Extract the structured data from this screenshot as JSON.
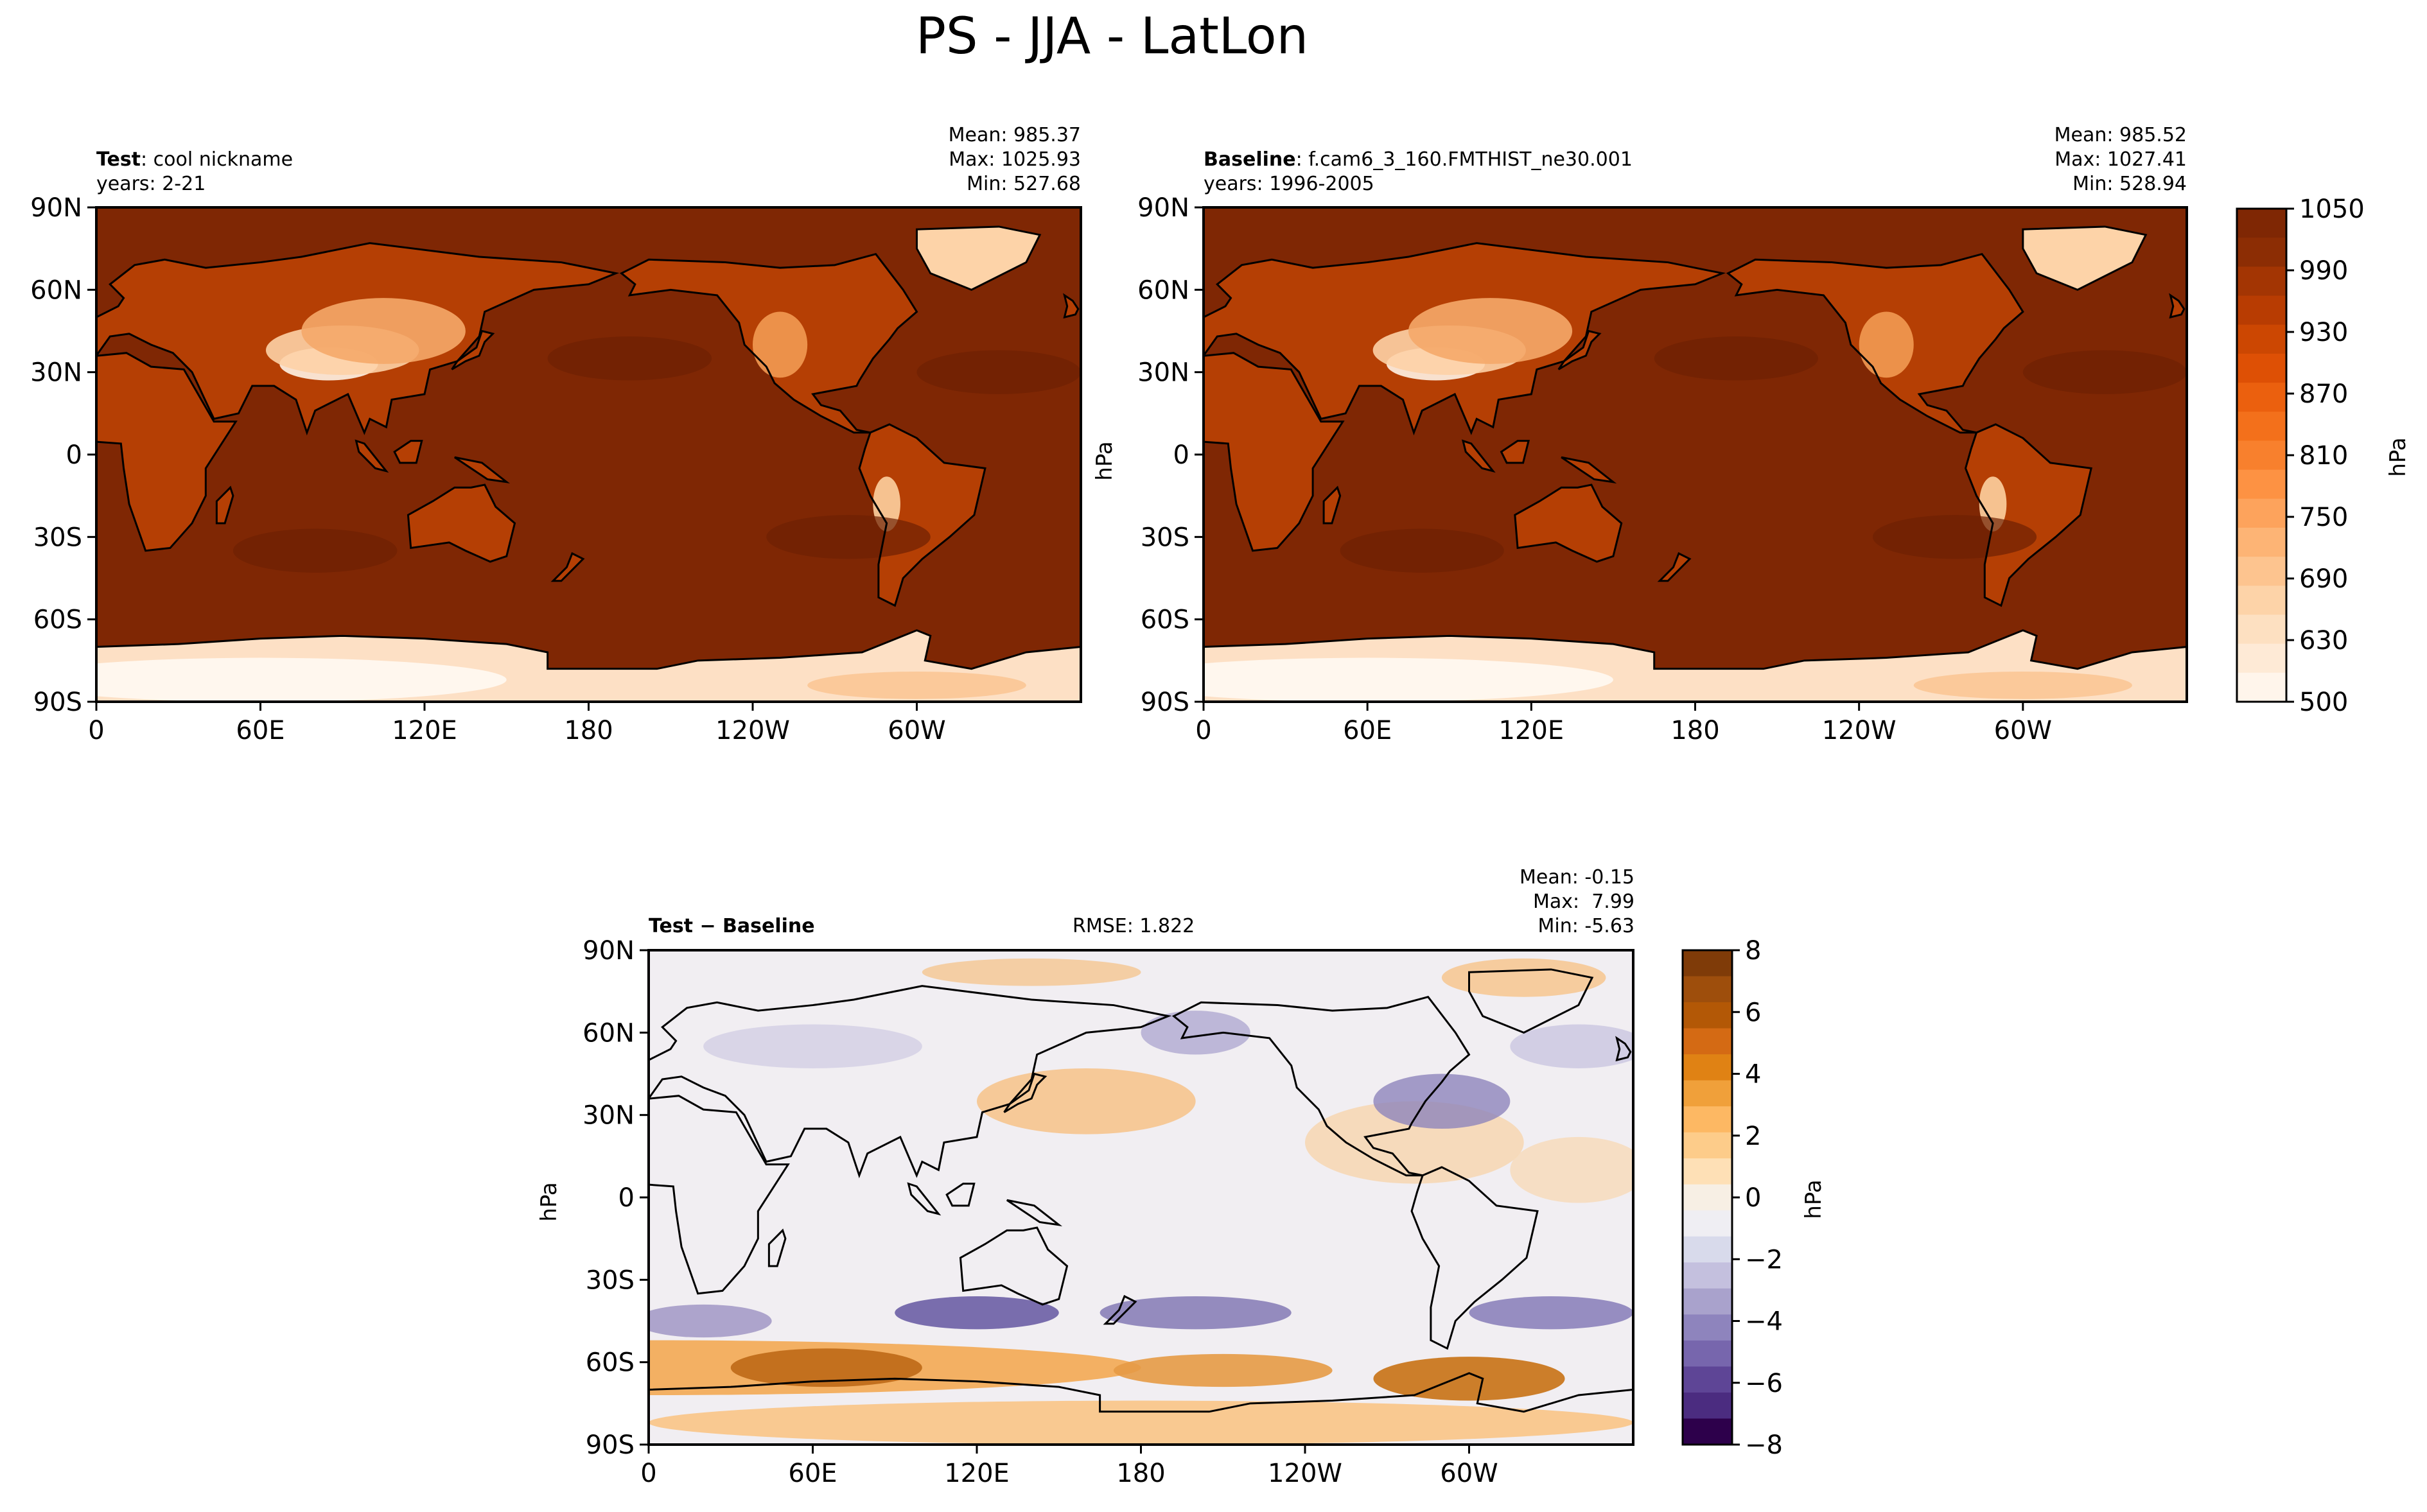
{
  "figure": {
    "title": "PS - JJA - LatLon"
  },
  "panels": {
    "test": {
      "label_bold": "Test",
      "label_rest": ": cool nickname",
      "years": "years: 2-21",
      "mean": "Mean: 985.37",
      "max": "Max: 1025.93",
      "min": "Min: 527.68"
    },
    "baseline": {
      "label_bold": "Baseline",
      "label_rest": ": f.cam6_3_160.FMTHIST_ne30.001",
      "years": "years: 1996-2005",
      "mean": "Mean: 985.52",
      "max": "Max: 1027.41",
      "min": "Min: 528.94",
      "ylabel": "hPa"
    },
    "diff": {
      "label": "Test − Baseline",
      "rmse": "RMSE: 1.822",
      "mean": "Mean: -0.15",
      "max": "Max:  7.99",
      "min": "Min: -5.63",
      "ylabel": "hPa"
    }
  },
  "chart_data": [
    {
      "type": "heatmap",
      "title": "Test: cool nickname",
      "subtitle": "years: 2-21",
      "xlabel": "",
      "ylabel": "",
      "x_ticks": [
        "0",
        "60E",
        "120E",
        "180",
        "120W",
        "60W"
      ],
      "y_ticks": [
        "90N",
        "60N",
        "30N",
        "0",
        "30S",
        "60S",
        "90S"
      ],
      "stats": {
        "mean": 985.37,
        "max": 1025.93,
        "min": 527.68
      },
      "colormap": "Oranges",
      "levels": [
        500,
        530,
        560,
        590,
        630,
        660,
        690,
        720,
        750,
        780,
        810,
        840,
        870,
        900,
        930,
        960,
        990,
        1020,
        1050
      ]
    },
    {
      "type": "heatmap",
      "title": "Baseline: f.cam6_3_160.FMTHIST_ne30.001",
      "subtitle": "years: 1996-2005",
      "xlabel": "",
      "ylabel": "hPa",
      "x_ticks": [
        "0",
        "60E",
        "120E",
        "180",
        "120W",
        "60W"
      ],
      "y_ticks": [
        "90N",
        "60N",
        "30N",
        "0",
        "30S",
        "60S",
        "90S"
      ],
      "stats": {
        "mean": 985.52,
        "max": 1027.41,
        "min": 528.94
      },
      "colorbar": {
        "label": "hPa",
        "ticks": [
          "1050",
          "990",
          "930",
          "870",
          "810",
          "750",
          "690",
          "630",
          "500"
        ]
      }
    },
    {
      "type": "heatmap",
      "title": "Test − Baseline",
      "annotation": "RMSE: 1.822",
      "xlabel": "",
      "ylabel": "hPa",
      "x_ticks": [
        "0",
        "60E",
        "120E",
        "180",
        "120W",
        "60W"
      ],
      "y_ticks": [
        "90N",
        "60N",
        "30N",
        "0",
        "30S",
        "60S",
        "90S"
      ],
      "stats": {
        "mean": -0.15,
        "max": 7.99,
        "min": -5.63
      },
      "colormap": "PuOr_r",
      "colorbar": {
        "label": "hPa",
        "ticks": [
          "8",
          "6",
          "4",
          "2",
          "0",
          "−2",
          "−4",
          "−6",
          "−8"
        ]
      }
    }
  ],
  "colors": {
    "oranges_dark": "#7f2704",
    "oranges_mid": "#f16913",
    "oranges_light": "#fff5eb",
    "diff_orange": "#b35806",
    "diff_purple": "#2d004b"
  }
}
